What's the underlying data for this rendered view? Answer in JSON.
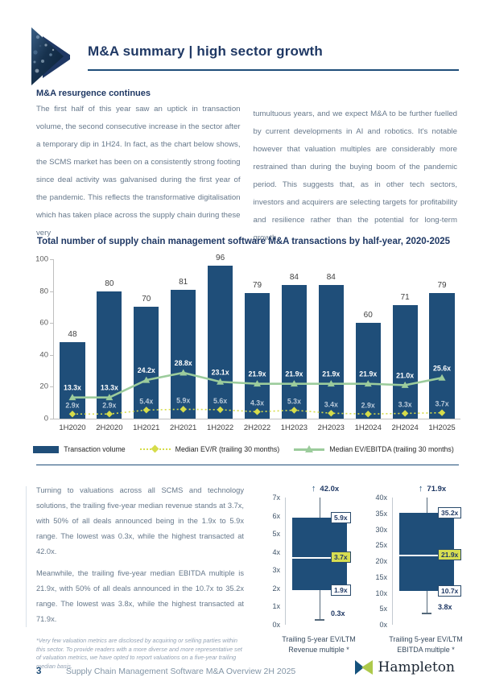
{
  "header": {
    "title": "M&A summary | high sector growth"
  },
  "intro": {
    "heading": "M&A resurgence continues",
    "col1": "The first half of this year saw an uptick in transaction volume, the second consecutive increase in the sector after a temporary dip in 1H24. In fact, as the chart below shows, the SCMS market has been on a consistently strong footing since deal activity was galvanised during the first year of the pandemic. This reflects the transformative digitalisation which has taken place across the supply chain during these very",
    "col2": "tumultuous years, and we expect M&A to be further fuelled by current developments in AI and robotics. It's notable however that valuation multiples are considerably more restrained than during the buying boom of the pandemic period. This suggests that, as in other tech sectors, investors and acquirers are selecting targets for profitability and resilience rather than the potential for long-term growth."
  },
  "chart_data": [
    {
      "type": "bar",
      "title": "Total number of supply chain management software M&A transactions by half-year, 2020-2025",
      "categories": [
        "1H2020",
        "2H2020",
        "1H2021",
        "2H2021",
        "1H2022",
        "2H2022",
        "1H2023",
        "2H2023",
        "1H2024",
        "2H2024",
        "1H2025"
      ],
      "ylim": [
        0,
        100
      ],
      "yticks": [
        0,
        20,
        40,
        60,
        80,
        100
      ],
      "grid": false,
      "legend_position": "bottom",
      "series": [
        {
          "name": "Transaction volume",
          "type": "bar",
          "color": "#1F4E79",
          "values": [
            48,
            80,
            70,
            81,
            96,
            79,
            84,
            84,
            60,
            71,
            79
          ]
        },
        {
          "name": "Median EV/R (trailing 30 months)",
          "type": "line",
          "dash": true,
          "marker": "diamond",
          "color": "#D6DC4A",
          "labelColor": "#b9c9d9",
          "values": [
            2.9,
            2.9,
            5.4,
            5.9,
            5.6,
            4.3,
            5.3,
            3.4,
            2.9,
            3.3,
            3.7
          ],
          "labels": [
            "2.9x",
            "2.9x",
            "5.4x",
            "5.9x",
            "5.6x",
            "4.3x",
            "5.3x",
            "3.4x",
            "2.9x",
            "3.3x",
            "3.7x"
          ]
        },
        {
          "name": "Median EV/EBITDA (trailing 30 months)",
          "type": "line",
          "dash": false,
          "marker": "triangle",
          "color": "#9CCC9C",
          "labelColor": "#ffffff",
          "values": [
            13.3,
            13.3,
            24.2,
            28.8,
            23.1,
            21.9,
            21.9,
            21.9,
            21.9,
            21.0,
            25.6
          ],
          "labels": [
            "13.3x",
            "13.3x",
            "24.2x",
            "28.8x",
            "23.1x",
            "21.9x",
            "21.9x",
            "21.9x",
            "21.9x",
            "21.0x",
            "25.6x"
          ]
        }
      ]
    },
    {
      "type": "boxplot",
      "caption_line1": "Trailing 5-year EV/LTM",
      "caption_line2": "Revenue multiple *",
      "axis_ticks": [
        "7x",
        "6x",
        "5x",
        "4x",
        "3x",
        "2x",
        "1x",
        "0x"
      ],
      "axis_max": 7,
      "ticks_width": 22,
      "q1": 1.9,
      "median": 3.7,
      "q3": 5.9,
      "q1_label": "1.9x",
      "median_label": "3.7x",
      "q3_label": "5.9x",
      "whisker_high_label": "42.0x",
      "whisker_low": 0.3,
      "whisker_low_label": "0.3x"
    },
    {
      "type": "boxplot",
      "caption_line1": "Trailing 5-year EV/LTM",
      "caption_line2": "EBITDA multiple *",
      "axis_ticks": [
        "40x",
        "35x",
        "30x",
        "25x",
        "20x",
        "15x",
        "10x",
        "5x",
        "0x"
      ],
      "axis_max": 40,
      "ticks_width": 28,
      "q1": 10.7,
      "median": 21.9,
      "q3": 35.2,
      "q1_label": "10.7x",
      "median_label": "21.9x",
      "q3_label": "35.2x",
      "whisker_high_label": "71.9x",
      "whisker_low": 3.8,
      "whisker_low_label": "3.8x"
    }
  ],
  "valuation": {
    "para1": "Turning to valuations across all SCMS and technology solutions, the trailing five-year median revenue stands at 3.7x, with 50% of all deals announced being in the 1.9x to 5.9x range. The lowest was 0.3x, while the highest transacted at 42.0x.",
    "para2": "Meanwhile, the trailing five-year median EBITDA multiple is 21.9x, with 50% of all deals announced in the 10.7x to 35.2x range. The lowest was 3.8x, while the highest transacted at 71.9x.",
    "footnote": "*Very few valuation metrics are disclosed by acquiring or selling parties within this sector. To provide readers with a more diverse and more representative set of valuation metrics, we have opted to report valuations on a five-year trailing median basis."
  },
  "footer": {
    "page_number": "3",
    "text": "Supply Chain Management Software M&A Overview 2H 2025",
    "brand": "Hampleton"
  },
  "colors": {
    "navy": "#1F4E79",
    "heading": "#1F3864",
    "sage_green": "#9CCC9C",
    "yellow_green": "#D6DC4A",
    "median_chip": "#D7DE51",
    "body_text": "#66788B"
  }
}
